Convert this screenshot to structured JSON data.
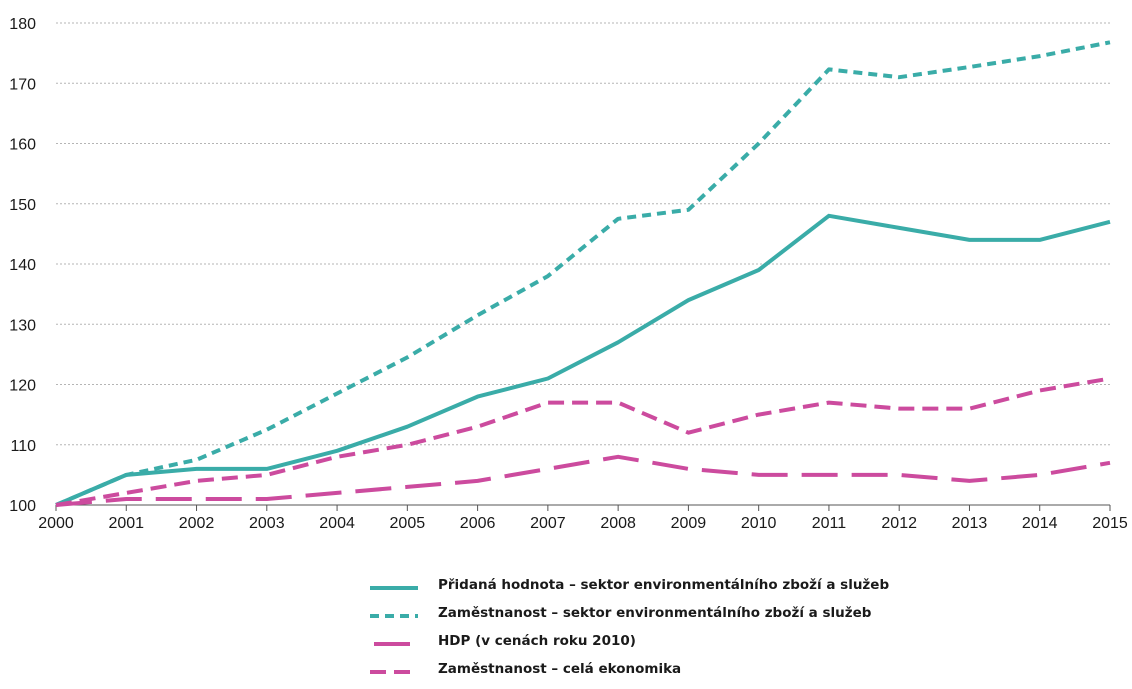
{
  "chart_data": {
    "type": "line",
    "x": [
      2000,
      2001,
      2002,
      2003,
      2004,
      2005,
      2006,
      2007,
      2008,
      2009,
      2010,
      2011,
      2012,
      2013,
      2014,
      2015
    ],
    "xticks": [
      "2000",
      "2001",
      "2002",
      "2003",
      "2004",
      "2005",
      "2006",
      "2007",
      "2008",
      "2009",
      "2010",
      "2011",
      "2012",
      "2013",
      "2014",
      "2015"
    ],
    "yticks": [
      "100",
      "110",
      "120",
      "130",
      "140",
      "150",
      "160",
      "170",
      "180"
    ],
    "ylim": [
      100,
      180
    ],
    "grid": true,
    "legend_position": "bottom",
    "series": [
      {
        "name": "Přidaná hodnota – sektor environmentálního zboží a služeb",
        "color": "#3aaca8",
        "style": "solid",
        "values": [
          100,
          105,
          106,
          106,
          109,
          113,
          118,
          121,
          127,
          134,
          139,
          148,
          146,
          144,
          144,
          147
        ]
      },
      {
        "name": "Zaměstnanost – sektor environmentálního zboží a služeb",
        "color": "#3aaca8",
        "style": "short-dash",
        "values": [
          100,
          105,
          107.5,
          112.5,
          118.5,
          124.5,
          131.5,
          138,
          147.5,
          149,
          160,
          172.3,
          171,
          172.7,
          174.5,
          176.8
        ]
      },
      {
        "name": "HDP (v cenách roku 2010)",
        "color": "#cc4b9e",
        "style": "long-dash",
        "values": [
          100,
          101,
          101,
          101,
          102,
          103,
          104,
          106,
          108,
          106,
          105,
          105,
          105,
          104,
          105,
          107
        ]
      },
      {
        "name": "Zaměstnanost – celá ekonomika",
        "color": "#cc4b9e",
        "style": "medium-dash",
        "values": [
          100,
          102,
          104,
          105,
          108,
          110,
          113,
          117,
          117,
          112,
          115,
          117,
          116,
          116,
          119,
          121
        ]
      }
    ]
  }
}
